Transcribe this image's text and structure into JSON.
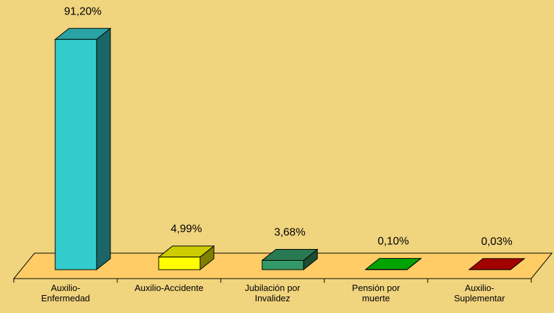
{
  "chart_data": {
    "type": "bar3d",
    "categories": [
      "Auxilio-Enfermedad",
      "Auxilio-Accidente",
      "Jubilación por Invalidez",
      "Pensión por muerte",
      "Auxilio-Suplementar"
    ],
    "values": [
      91.2,
      4.99,
      3.68,
      0.1,
      0.03
    ],
    "value_labels": [
      "91,20%",
      "4,99%",
      "3,68%",
      "0,10%",
      "0,03%"
    ],
    "colors": [
      "#33cccc",
      "#ffff00",
      "#339966",
      "#00cc00",
      "#cc0000"
    ]
  }
}
